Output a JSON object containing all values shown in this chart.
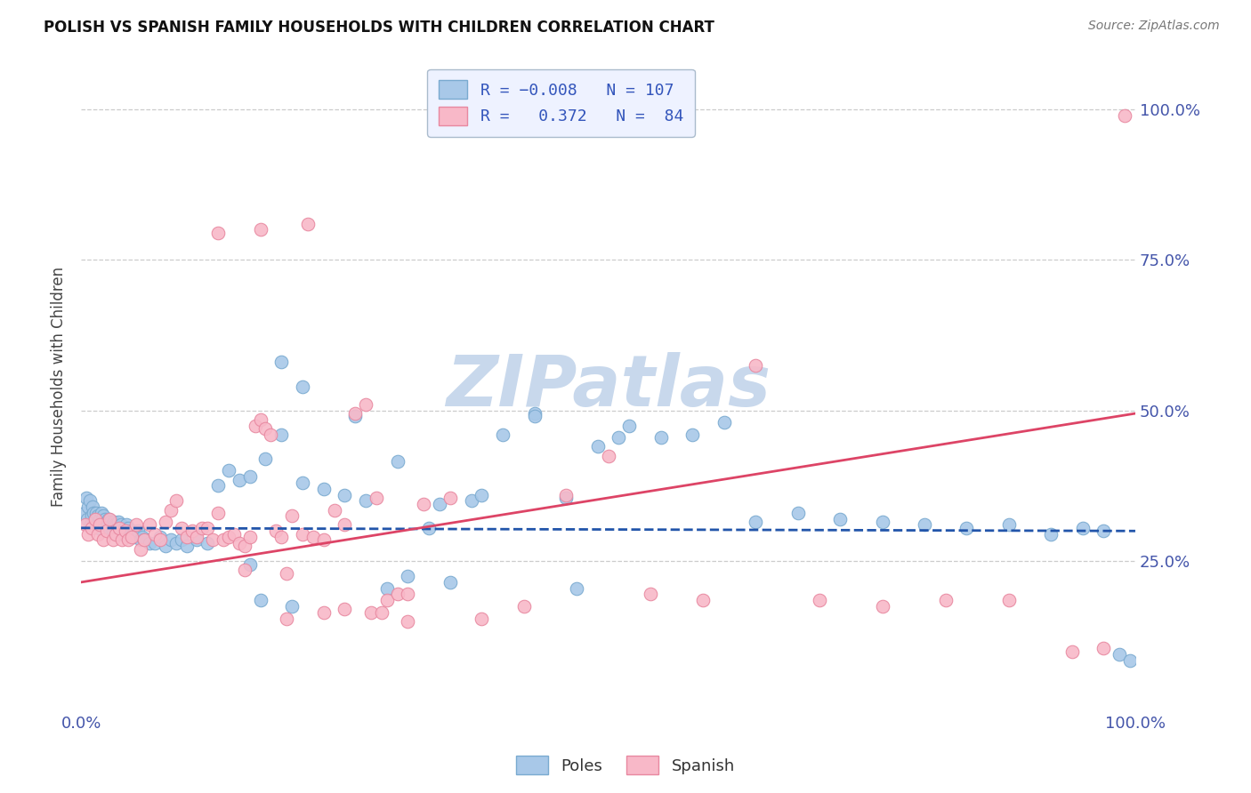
{
  "title": "POLISH VS SPANISH FAMILY HOUSEHOLDS WITH CHILDREN CORRELATION CHART",
  "source": "Source: ZipAtlas.com",
  "ylabel": "Family Households with Children",
  "ytick_labels": [
    "25.0%",
    "50.0%",
    "75.0%",
    "100.0%"
  ],
  "ytick_values": [
    0.25,
    0.5,
    0.75,
    1.0
  ],
  "xlim": [
    0.0,
    1.0
  ],
  "ylim": [
    0.0,
    1.08
  ],
  "poles_color": "#A8C8E8",
  "poles_edge_color": "#7AAAD0",
  "spanish_color": "#F8B8C8",
  "spanish_edge_color": "#E888A0",
  "poles_line_color": "#2255AA",
  "spanish_line_color": "#DD4466",
  "watermark_color": "#C8D8EC",
  "legend_bg_color": "#EEF2FF",
  "legend_edge_color": "#AABBCC",
  "poles_R": -0.008,
  "poles_N": 107,
  "spanish_R": 0.372,
  "spanish_N": 84,
  "poles_line_y0": 0.305,
  "poles_line_y1": 0.3,
  "spanish_line_y0": 0.215,
  "spanish_line_y1": 0.495,
  "poles_x": [
    0.003,
    0.005,
    0.006,
    0.007,
    0.008,
    0.009,
    0.01,
    0.011,
    0.012,
    0.013,
    0.014,
    0.015,
    0.016,
    0.017,
    0.018,
    0.019,
    0.02,
    0.021,
    0.022,
    0.023,
    0.024,
    0.025,
    0.026,
    0.027,
    0.028,
    0.029,
    0.03,
    0.031,
    0.032,
    0.033,
    0.034,
    0.035,
    0.036,
    0.037,
    0.038,
    0.04,
    0.041,
    0.042,
    0.043,
    0.044,
    0.045,
    0.047,
    0.048,
    0.049,
    0.05,
    0.052,
    0.054,
    0.056,
    0.058,
    0.06,
    0.065,
    0.07,
    0.075,
    0.08,
    0.085,
    0.09,
    0.095,
    0.1,
    0.11,
    0.12,
    0.13,
    0.14,
    0.15,
    0.16,
    0.175,
    0.19,
    0.21,
    0.23,
    0.25,
    0.27,
    0.29,
    0.31,
    0.34,
    0.37,
    0.4,
    0.43,
    0.46,
    0.49,
    0.52,
    0.55,
    0.58,
    0.61,
    0.64,
    0.68,
    0.72,
    0.76,
    0.8,
    0.84,
    0.88,
    0.92,
    0.95,
    0.97,
    0.985,
    0.995,
    0.26,
    0.19,
    0.21,
    0.3,
    0.35,
    0.43,
    0.47,
    0.51,
    0.38,
    0.33,
    0.16,
    0.17,
    0.2
  ],
  "poles_y": [
    0.33,
    0.355,
    0.32,
    0.34,
    0.35,
    0.31,
    0.325,
    0.34,
    0.33,
    0.32,
    0.33,
    0.31,
    0.325,
    0.305,
    0.32,
    0.33,
    0.315,
    0.325,
    0.31,
    0.32,
    0.315,
    0.31,
    0.32,
    0.305,
    0.315,
    0.31,
    0.3,
    0.315,
    0.31,
    0.305,
    0.31,
    0.315,
    0.305,
    0.3,
    0.31,
    0.295,
    0.305,
    0.3,
    0.31,
    0.295,
    0.305,
    0.295,
    0.3,
    0.295,
    0.29,
    0.295,
    0.3,
    0.285,
    0.29,
    0.285,
    0.28,
    0.28,
    0.29,
    0.275,
    0.285,
    0.28,
    0.285,
    0.275,
    0.285,
    0.28,
    0.375,
    0.4,
    0.385,
    0.39,
    0.42,
    0.46,
    0.38,
    0.37,
    0.36,
    0.35,
    0.205,
    0.225,
    0.345,
    0.35,
    0.46,
    0.495,
    0.355,
    0.44,
    0.475,
    0.455,
    0.46,
    0.48,
    0.315,
    0.33,
    0.32,
    0.315,
    0.31,
    0.305,
    0.31,
    0.295,
    0.305,
    0.3,
    0.095,
    0.085,
    0.49,
    0.58,
    0.54,
    0.415,
    0.215,
    0.49,
    0.205,
    0.455,
    0.36,
    0.305,
    0.245,
    0.185,
    0.175
  ],
  "spanish_x": [
    0.004,
    0.007,
    0.01,
    0.013,
    0.016,
    0.018,
    0.021,
    0.024,
    0.027,
    0.03,
    0.033,
    0.036,
    0.039,
    0.042,
    0.045,
    0.048,
    0.052,
    0.056,
    0.06,
    0.065,
    0.07,
    0.075,
    0.08,
    0.085,
    0.09,
    0.095,
    0.1,
    0.105,
    0.11,
    0.115,
    0.12,
    0.125,
    0.13,
    0.135,
    0.14,
    0.145,
    0.15,
    0.155,
    0.16,
    0.165,
    0.17,
    0.175,
    0.18,
    0.185,
    0.19,
    0.2,
    0.21,
    0.22,
    0.23,
    0.24,
    0.25,
    0.26,
    0.27,
    0.28,
    0.29,
    0.3,
    0.31,
    0.325,
    0.35,
    0.38,
    0.42,
    0.46,
    0.5,
    0.54,
    0.59,
    0.64,
    0.7,
    0.76,
    0.82,
    0.88,
    0.94,
    0.97,
    0.99,
    0.17,
    0.215,
    0.13,
    0.195,
    0.155,
    0.25,
    0.275,
    0.285,
    0.23,
    0.195,
    0.31
  ],
  "spanish_y": [
    0.31,
    0.295,
    0.305,
    0.32,
    0.295,
    0.31,
    0.285,
    0.3,
    0.32,
    0.285,
    0.295,
    0.305,
    0.285,
    0.3,
    0.285,
    0.29,
    0.31,
    0.27,
    0.285,
    0.31,
    0.295,
    0.285,
    0.315,
    0.335,
    0.35,
    0.305,
    0.29,
    0.3,
    0.29,
    0.305,
    0.305,
    0.285,
    0.33,
    0.285,
    0.29,
    0.295,
    0.28,
    0.275,
    0.29,
    0.475,
    0.485,
    0.47,
    0.46,
    0.3,
    0.29,
    0.325,
    0.295,
    0.29,
    0.285,
    0.335,
    0.31,
    0.495,
    0.51,
    0.355,
    0.185,
    0.195,
    0.195,
    0.345,
    0.355,
    0.155,
    0.175,
    0.36,
    0.425,
    0.195,
    0.185,
    0.575,
    0.185,
    0.175,
    0.185,
    0.185,
    0.1,
    0.105,
    0.99,
    0.8,
    0.81,
    0.795,
    0.23,
    0.235,
    0.17,
    0.165,
    0.165,
    0.165,
    0.155,
    0.15
  ]
}
